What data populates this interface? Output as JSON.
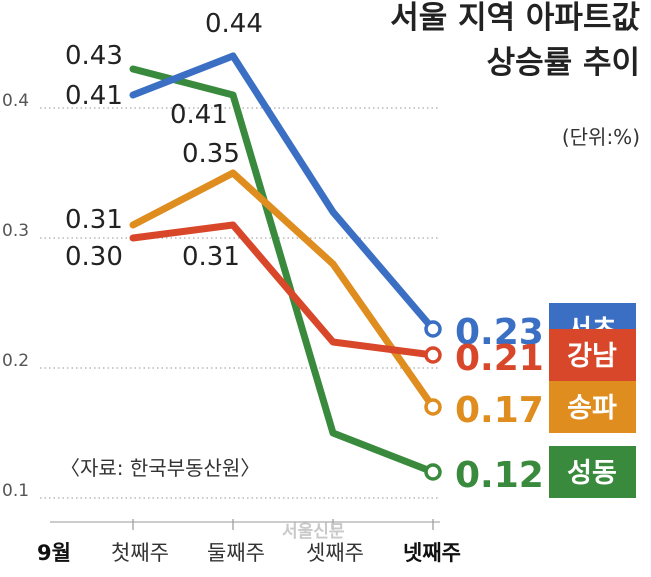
{
  "chart_data": {
    "type": "line",
    "title_lines": [
      "서울 지역 아파트값",
      "상승률 추이"
    ],
    "unit": "(단위:%)",
    "source": "〈자료: 한국부동산원〉",
    "watermark": "서울신문",
    "x_month": "9월",
    "categories": [
      "첫째주",
      "둘째주",
      "셋째주",
      "넷째주"
    ],
    "y_ticks": [
      "0.4",
      "0.3",
      "0.2",
      "0.1"
    ],
    "ylim": [
      0.1,
      0.45
    ],
    "grid": "dotted horizontal",
    "series": [
      {
        "name": "서초",
        "color": "#3a6fc4",
        "values": [
          0.41,
          0.44,
          0.32,
          0.23
        ],
        "end_label": "0.23",
        "labels": [
          "0.41",
          "0.44"
        ]
      },
      {
        "name": "강남",
        "color": "#d9472b",
        "values": [
          0.3,
          0.31,
          0.22,
          0.21
        ],
        "end_label": "0.21",
        "labels": [
          "0.30",
          "0.31"
        ]
      },
      {
        "name": "송파",
        "color": "#de8d1e",
        "values": [
          0.31,
          0.35,
          0.28,
          0.17
        ],
        "end_label": "0.17",
        "labels": [
          "0.31",
          "0.35"
        ]
      },
      {
        "name": "성동",
        "color": "#3a8a3d",
        "values": [
          0.43,
          0.41,
          0.15,
          0.12
        ],
        "end_label": "0.12",
        "labels": [
          "0.43",
          "0.41"
        ]
      }
    ]
  }
}
